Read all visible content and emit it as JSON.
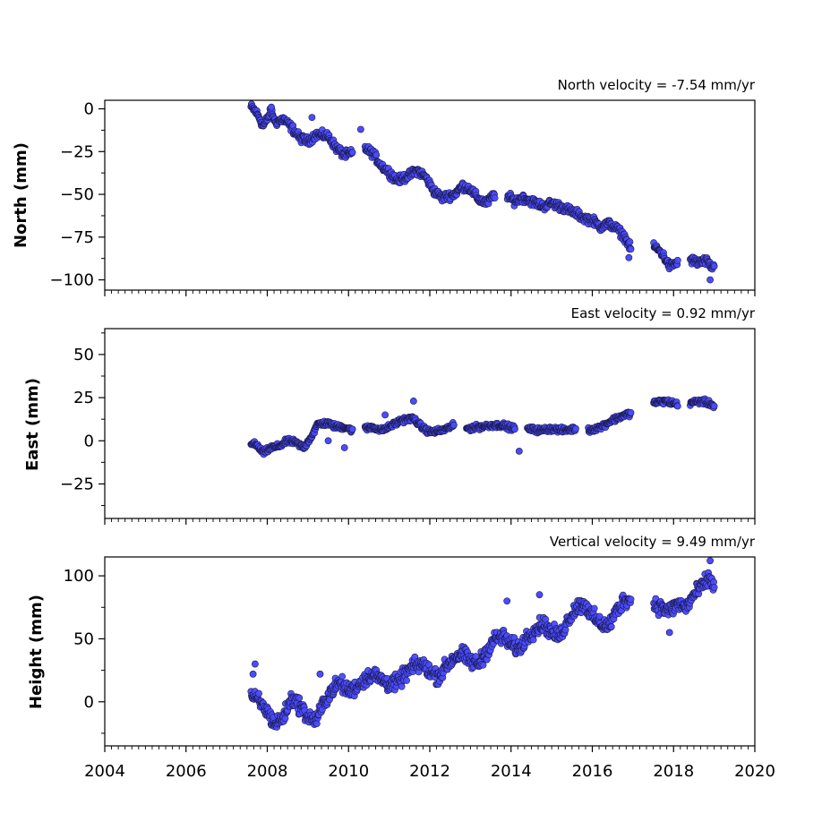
{
  "chart_data": [
    {
      "type": "scatter",
      "title": "North velocity = -7.54 mm/yr",
      "xlabel": "",
      "ylabel": "North (mm)",
      "xlim": [
        2004,
        2020
      ],
      "ylim": [
        -106,
        5
      ],
      "yticks": [
        0,
        -25,
        -50,
        -75,
        -100
      ],
      "ytick_labels": [
        "0",
        "−25",
        "−50",
        "−75",
        "−100"
      ],
      "grid": false,
      "marker_color": "#4b4bff",
      "points": [
        [
          2007.6,
          1
        ],
        [
          2007.7,
          -1
        ],
        [
          2007.8,
          -5
        ],
        [
          2007.9,
          -10
        ],
        [
          2008.0,
          -6
        ],
        [
          2008.1,
          -1
        ],
        [
          2008.2,
          -8
        ],
        [
          2008.4,
          -6
        ],
        [
          2008.6,
          -11
        ],
        [
          2008.8,
          -17
        ],
        [
          2009.0,
          -19
        ],
        [
          2009.2,
          -15
        ],
        [
          2009.5,
          -16
        ],
        [
          2009.7,
          -23
        ],
        [
          2009.9,
          -27
        ],
        [
          2010.1,
          -26
        ],
        [
          2010.4,
          -23
        ],
        [
          2010.6,
          -26
        ],
        [
          2010.8,
          -33
        ],
        [
          2011.0,
          -37
        ],
        [
          2011.2,
          -42
        ],
        [
          2011.4,
          -40
        ],
        [
          2011.7,
          -36
        ],
        [
          2011.9,
          -40
        ],
        [
          2012.1,
          -48
        ],
        [
          2012.3,
          -52
        ],
        [
          2012.6,
          -50
        ],
        [
          2012.8,
          -45
        ],
        [
          2013.0,
          -47
        ],
        [
          2013.2,
          -53
        ],
        [
          2013.4,
          -55
        ],
        [
          2013.6,
          -50
        ],
        [
          2013.9,
          -51
        ],
        [
          2014.1,
          -54
        ],
        [
          2014.3,
          -52
        ],
        [
          2014.5,
          -54
        ],
        [
          2014.8,
          -57
        ],
        [
          2015.0,
          -55
        ],
        [
          2015.2,
          -57
        ],
        [
          2015.4,
          -59
        ],
        [
          2015.6,
          -61
        ],
        [
          2015.8,
          -64
        ],
        [
          2016.0,
          -65
        ],
        [
          2016.2,
          -69
        ],
        [
          2016.4,
          -67
        ],
        [
          2016.6,
          -70
        ],
        [
          2016.8,
          -75
        ],
        [
          2016.95,
          -82
        ],
        [
          2017.5,
          -80
        ],
        [
          2017.7,
          -84
        ],
        [
          2017.9,
          -92
        ],
        [
          2018.1,
          -90
        ],
        [
          2018.4,
          -88
        ],
        [
          2018.6,
          -90
        ],
        [
          2018.8,
          -89
        ],
        [
          2018.95,
          -93
        ],
        [
          2019.0,
          -92
        ]
      ],
      "outliers": [
        [
          2009.1,
          -5
        ],
        [
          2010.3,
          -12
        ],
        [
          2008.1,
          1
        ],
        [
          2016.9,
          -87
        ],
        [
          2018.9,
          -100
        ]
      ]
    },
    {
      "type": "scatter",
      "title": "East velocity = 0.92 mm/yr",
      "xlabel": "",
      "ylabel": "East (mm)",
      "xlim": [
        2004,
        2020
      ],
      "ylim": [
        -45,
        65
      ],
      "yticks": [
        50,
        25,
        0,
        -25
      ],
      "ytick_labels": [
        "50",
        "25",
        "0",
        "−25"
      ],
      "grid": false,
      "marker_color": "#4b4bff",
      "points": [
        [
          2007.6,
          -1
        ],
        [
          2007.75,
          -3
        ],
        [
          2007.9,
          -7
        ],
        [
          2008.1,
          -4
        ],
        [
          2008.3,
          -3
        ],
        [
          2008.5,
          0
        ],
        [
          2008.7,
          -1
        ],
        [
          2008.9,
          -4
        ],
        [
          2009.1,
          3
        ],
        [
          2009.25,
          10
        ],
        [
          2009.5,
          10
        ],
        [
          2009.7,
          8
        ],
        [
          2009.9,
          8
        ],
        [
          2010.1,
          6
        ],
        [
          2010.4,
          7
        ],
        [
          2010.6,
          8
        ],
        [
          2010.8,
          6
        ],
        [
          2011.0,
          8
        ],
        [
          2011.3,
          12
        ],
        [
          2011.6,
          13
        ],
        [
          2011.8,
          8
        ],
        [
          2012.0,
          5
        ],
        [
          2012.3,
          6
        ],
        [
          2012.6,
          9
        ],
        [
          2012.9,
          7
        ],
        [
          2013.2,
          8
        ],
        [
          2013.5,
          9
        ],
        [
          2013.8,
          9
        ],
        [
          2014.1,
          7
        ],
        [
          2014.4,
          7
        ],
        [
          2014.7,
          6
        ],
        [
          2015.0,
          7
        ],
        [
          2015.3,
          6
        ],
        [
          2015.6,
          7
        ],
        [
          2015.9,
          6
        ],
        [
          2016.2,
          8
        ],
        [
          2016.5,
          12
        ],
        [
          2016.8,
          15
        ],
        [
          2016.95,
          16
        ],
        [
          2017.5,
          22
        ],
        [
          2017.8,
          23
        ],
        [
          2018.1,
          21
        ],
        [
          2018.4,
          22
        ],
        [
          2018.7,
          23
        ],
        [
          2018.95,
          21
        ],
        [
          2019.0,
          20
        ]
      ],
      "outliers": [
        [
          2011.6,
          23
        ],
        [
          2009.9,
          -4
        ],
        [
          2014.2,
          -6
        ],
        [
          2009.5,
          0
        ],
        [
          2010.9,
          15
        ]
      ]
    },
    {
      "type": "scatter",
      "title": "Vertical velocity = 9.49 mm/yr",
      "xlabel": "",
      "ylabel": "Height (mm)",
      "xlim": [
        2004,
        2020
      ],
      "ylim": [
        -35,
        115
      ],
      "yticks": [
        100,
        50,
        0
      ],
      "ytick_labels": [
        "100",
        "50",
        "0"
      ],
      "xticks": [
        2004,
        2006,
        2008,
        2010,
        2012,
        2014,
        2016,
        2018,
        2020
      ],
      "xtick_labels": [
        "2004",
        "2006",
        "2008",
        "2010",
        "2012",
        "2014",
        "2016",
        "2018",
        "2020"
      ],
      "grid": false,
      "marker_color": "#4b4bff",
      "points": [
        [
          2007.6,
          5
        ],
        [
          2007.8,
          0
        ],
        [
          2008.0,
          -8
        ],
        [
          2008.2,
          -18
        ],
        [
          2008.4,
          -12
        ],
        [
          2008.6,
          3
        ],
        [
          2008.8,
          -3
        ],
        [
          2009.0,
          -12
        ],
        [
          2009.2,
          -15
        ],
        [
          2009.4,
          0
        ],
        [
          2009.6,
          10
        ],
        [
          2009.8,
          15
        ],
        [
          2010.0,
          8
        ],
        [
          2010.2,
          12
        ],
        [
          2010.4,
          18
        ],
        [
          2010.6,
          22
        ],
        [
          2010.8,
          18
        ],
        [
          2011.0,
          14
        ],
        [
          2011.2,
          15
        ],
        [
          2011.4,
          22
        ],
        [
          2011.6,
          28
        ],
        [
          2011.8,
          30
        ],
        [
          2012.0,
          24
        ],
        [
          2012.2,
          20
        ],
        [
          2012.4,
          28
        ],
        [
          2012.6,
          35
        ],
        [
          2012.8,
          38
        ],
        [
          2013.0,
          32
        ],
        [
          2013.2,
          30
        ],
        [
          2013.4,
          40
        ],
        [
          2013.6,
          50
        ],
        [
          2013.8,
          52
        ],
        [
          2014.0,
          45
        ],
        [
          2014.2,
          42
        ],
        [
          2014.4,
          52
        ],
        [
          2014.6,
          58
        ],
        [
          2014.8,
          62
        ],
        [
          2015.0,
          55
        ],
        [
          2015.2,
          52
        ],
        [
          2015.4,
          65
        ],
        [
          2015.6,
          75
        ],
        [
          2015.8,
          78
        ],
        [
          2016.0,
          68
        ],
        [
          2016.2,
          62
        ],
        [
          2016.4,
          60
        ],
        [
          2016.6,
          72
        ],
        [
          2016.8,
          82
        ],
        [
          2016.95,
          80
        ],
        [
          2017.5,
          78
        ],
        [
          2017.7,
          75
        ],
        [
          2017.9,
          72
        ],
        [
          2018.1,
          78
        ],
        [
          2018.3,
          75
        ],
        [
          2018.5,
          85
        ],
        [
          2018.7,
          92
        ],
        [
          2018.9,
          98
        ],
        [
          2019.0,
          90
        ]
      ],
      "outliers": [
        [
          2007.7,
          30
        ],
        [
          2009.3,
          22
        ],
        [
          2013.9,
          80
        ],
        [
          2014.7,
          85
        ],
        [
          2018.9,
          112
        ],
        [
          2017.9,
          55
        ],
        [
          2007.65,
          22
        ]
      ]
    }
  ]
}
